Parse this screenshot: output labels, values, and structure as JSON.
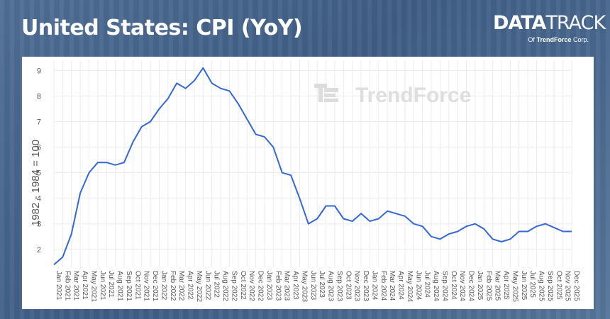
{
  "header": {
    "title": "United States: CPI (YoY)"
  },
  "logo": {
    "brand_bold": "DATA",
    "brand_light": "TRACK",
    "of_text": "Of",
    "company": "TrendForce",
    "company_suffix": "Corp."
  },
  "watermark": {
    "text": "TrendForce"
  },
  "colors": {
    "line": "#3467d6",
    "grid": "#ececec",
    "axis_text": "#555555",
    "panel_bg": "#ffffff",
    "header_bg": "#4a6a92"
  },
  "chart_data": {
    "type": "line",
    "title": "United States: CPI (YoY)",
    "xlabel": "",
    "ylabel": "1982 - 1984 = 100",
    "ylim": [
      1.3,
      9.4
    ],
    "yticks": [
      2,
      3,
      4,
      5,
      6,
      7,
      8,
      9
    ],
    "grid": true,
    "legend": "none",
    "categories": [
      "Jan 2021",
      "Feb 2021",
      "Mar 2021",
      "Apr 2021",
      "May 2021",
      "Jun 2021",
      "Jul 2021",
      "Aug 2021",
      "Sep 2021",
      "Oct 2021",
      "Nov 2021",
      "Dec 2021",
      "Jan 2022",
      "Feb 2022",
      "Mar 2022",
      "Apr 2022",
      "May 2022",
      "Jun 2022",
      "Jul 2022",
      "Aug 2022",
      "Sep 2022",
      "Oct 2022",
      "Nov 2022",
      "Dec 2022",
      "Jan 2023",
      "Feb 2023",
      "Mar 2023",
      "Apr 2023",
      "May 2023",
      "Jun 2023",
      "Jul 2023",
      "Aug 2023",
      "Sep 2023",
      "Oct 2023",
      "Nov 2023",
      "Dec 2023",
      "Jan 2024",
      "Feb 2024",
      "Mar 2024",
      "Apr 2024",
      "May 2024",
      "Jun 2024",
      "Jul 2024",
      "Aug 2024",
      "Sep 2024",
      "Oct 2024",
      "Nov 2024",
      "Dec 2024",
      "Jan 2025",
      "Feb 2025",
      "Mar 2025",
      "Apr 2025",
      "May 2025",
      "Jun 2025",
      "Jul 2025",
      "Aug 2025",
      "Sep 2025",
      "Oct 2025",
      "Nov 2025",
      "Dec 2025"
    ],
    "series": [
      {
        "values": [
          1.4,
          1.7,
          2.6,
          4.2,
          5.0,
          5.4,
          5.4,
          5.3,
          5.4,
          6.2,
          6.8,
          7.0,
          7.5,
          7.9,
          8.5,
          8.3,
          8.6,
          9.1,
          8.5,
          8.3,
          8.2,
          7.7,
          7.1,
          6.5,
          6.4,
          6.0,
          5.0,
          4.9,
          4.0,
          3.0,
          3.2,
          3.7,
          3.7,
          3.2,
          3.1,
          3.4,
          3.1,
          3.2,
          3.5,
          3.4,
          3.3,
          3.0,
          2.9,
          2.5,
          2.4,
          2.6,
          2.7,
          2.9,
          3.0,
          2.8,
          2.4,
          2.3,
          2.4,
          2.7,
          2.7,
          2.9,
          3.0,
          2.85,
          2.7,
          2.7
        ]
      }
    ]
  }
}
